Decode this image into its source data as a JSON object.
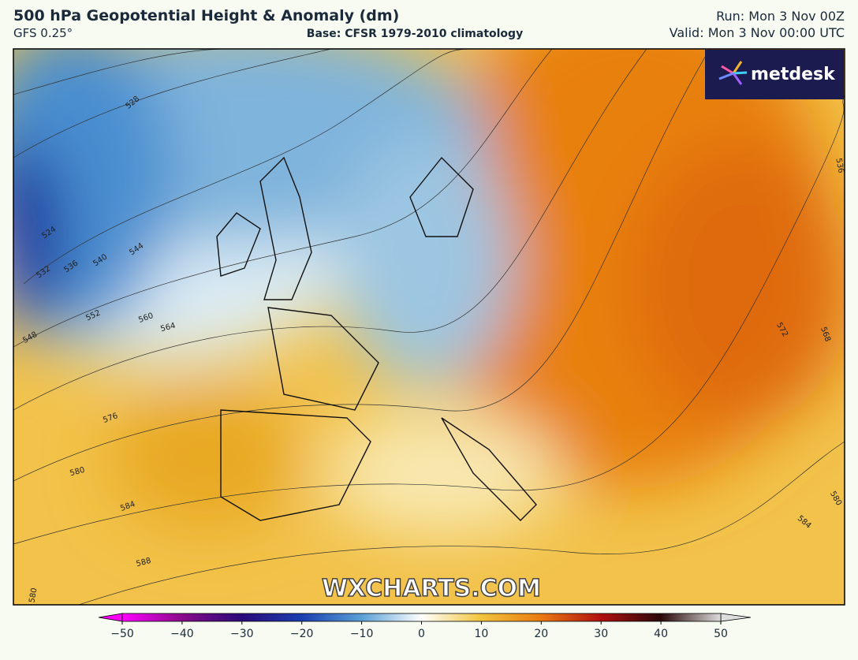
{
  "header": {
    "title": "500 hPa Geopotential Height & Anomaly (dm)",
    "model": "GFS 0.25°",
    "base": "Base: CFSR 1979-2010 climatology",
    "run": "Run: Mon 3 Nov 00Z",
    "valid": "Valid: Mon 3 Nov 00:00 UTC"
  },
  "logo": "metdesk",
  "watermark": "WXCHARTS.COM",
  "map": {
    "contour_labels": [
      528,
      524,
      532,
      536,
      540,
      544,
      548,
      552,
      560,
      564,
      576,
      580,
      584,
      588,
      580,
      572,
      568,
      584,
      580,
      536
    ]
  },
  "colorbar": {
    "lim": [
      -50,
      50
    ],
    "ticks": [
      {
        "value": -50,
        "label": "−50"
      },
      {
        "value": -40,
        "label": "−40"
      },
      {
        "value": -30,
        "label": "−30"
      },
      {
        "value": -20,
        "label": "−20"
      },
      {
        "value": -10,
        "label": "−10"
      },
      0,
      10,
      20,
      30,
      40,
      50
    ]
  }
}
